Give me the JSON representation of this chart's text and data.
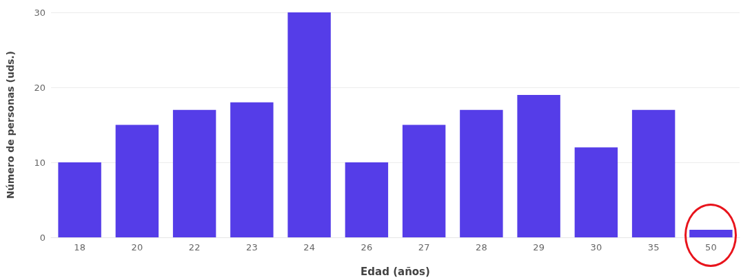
{
  "chart_data": {
    "type": "bar",
    "xlabel": "Edad (años)",
    "ylabel": "Número de personas (uds.)",
    "categories": [
      "18",
      "20",
      "22",
      "23",
      "24",
      "26",
      "27",
      "28",
      "29",
      "30",
      "35",
      "50"
    ],
    "values": [
      10,
      15,
      17,
      18,
      30,
      10,
      15,
      17,
      19,
      12,
      17,
      1
    ],
    "color": "#553de8",
    "ylim": [
      0,
      30
    ],
    "yticks": [
      0,
      10,
      20,
      30
    ],
    "grid": "y"
  }
}
